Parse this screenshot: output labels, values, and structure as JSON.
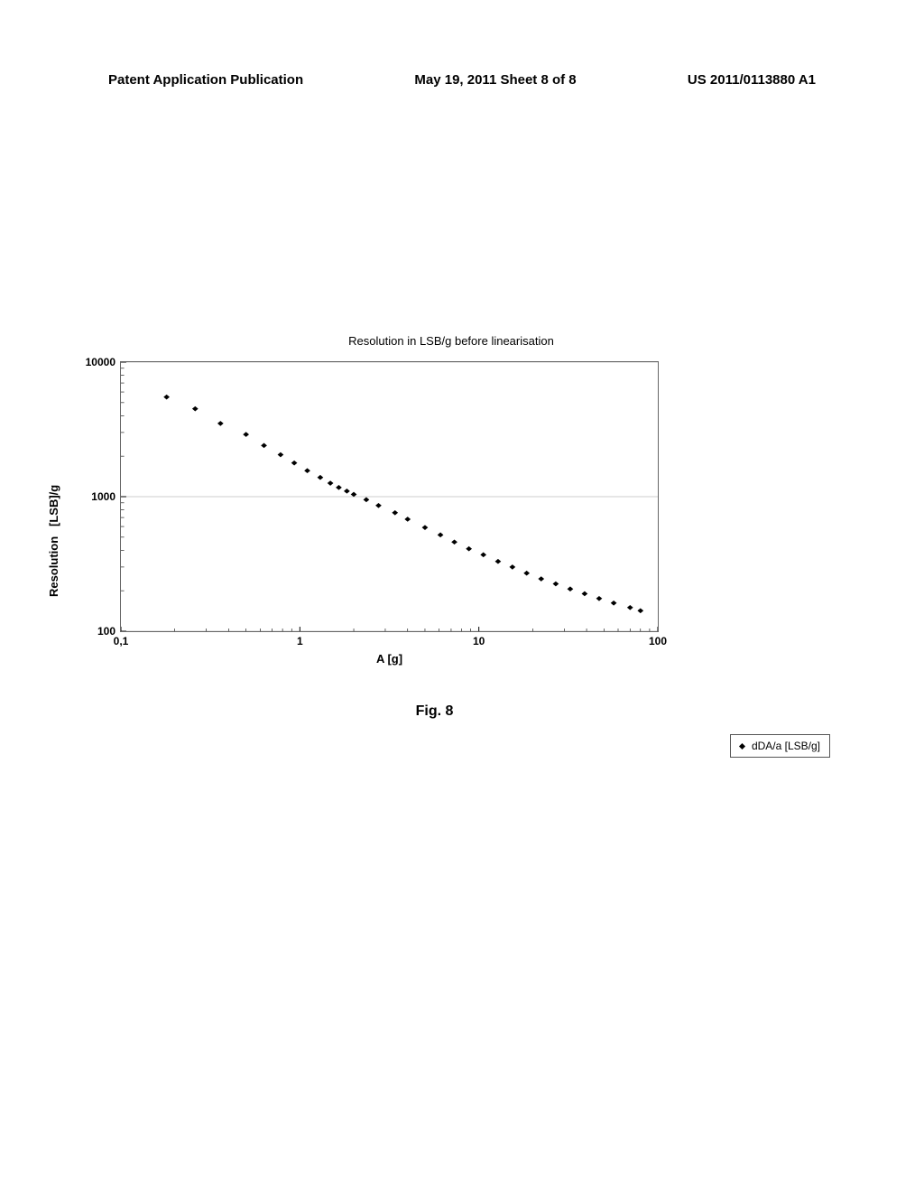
{
  "header": {
    "left": "Patent Application Publication",
    "center": "May 19, 2011  Sheet 8 of 8",
    "right": "US 2011/0113880 A1"
  },
  "chart": {
    "type": "scatter",
    "title": "Resolution in LSB/g before linearisation",
    "x_label": "A [g]",
    "y_label_line1": "Resolution",
    "y_label_line2": "[LSB]/g",
    "x_scale": "log",
    "y_scale": "log",
    "x_ticks": [
      "0,1",
      "1",
      "10",
      "100"
    ],
    "x_tick_values": [
      0.1,
      1,
      10,
      100
    ],
    "y_ticks": [
      "100",
      "1000",
      "10000"
    ],
    "y_tick_values": [
      100,
      1000,
      10000
    ],
    "xlim": [
      0.1,
      100
    ],
    "ylim": [
      100,
      10000
    ],
    "grid_color": "#cccccc",
    "border_color": "#666666",
    "background_color": "#ffffff",
    "marker_color": "#000000",
    "marker_size": 4,
    "marker_style": "diamond",
    "data_points": [
      [
        0.18,
        5500
      ],
      [
        0.26,
        4500
      ],
      [
        0.36,
        3500
      ],
      [
        0.5,
        2900
      ],
      [
        0.63,
        2400
      ],
      [
        0.78,
        2050
      ],
      [
        0.93,
        1780
      ],
      [
        1.1,
        1560
      ],
      [
        1.3,
        1390
      ],
      [
        1.48,
        1260
      ],
      [
        1.65,
        1170
      ],
      [
        1.83,
        1100
      ],
      [
        2.0,
        1040
      ],
      [
        2.35,
        950
      ],
      [
        2.75,
        860
      ],
      [
        3.4,
        760
      ],
      [
        4.0,
        680
      ],
      [
        5.0,
        590
      ],
      [
        6.1,
        520
      ],
      [
        7.3,
        460
      ],
      [
        8.8,
        410
      ],
      [
        10.6,
        370
      ],
      [
        12.8,
        330
      ],
      [
        15.4,
        300
      ],
      [
        18.5,
        270
      ],
      [
        22.3,
        245
      ],
      [
        26.9,
        225
      ],
      [
        32.4,
        206
      ],
      [
        39.0,
        190
      ],
      [
        47.0,
        175
      ],
      [
        56.7,
        162
      ],
      [
        70.0,
        150
      ],
      [
        80.0,
        142
      ]
    ],
    "legend": {
      "label": "dDA/a  [LSB/g]"
    }
  },
  "figure_caption": "Fig. 8"
}
